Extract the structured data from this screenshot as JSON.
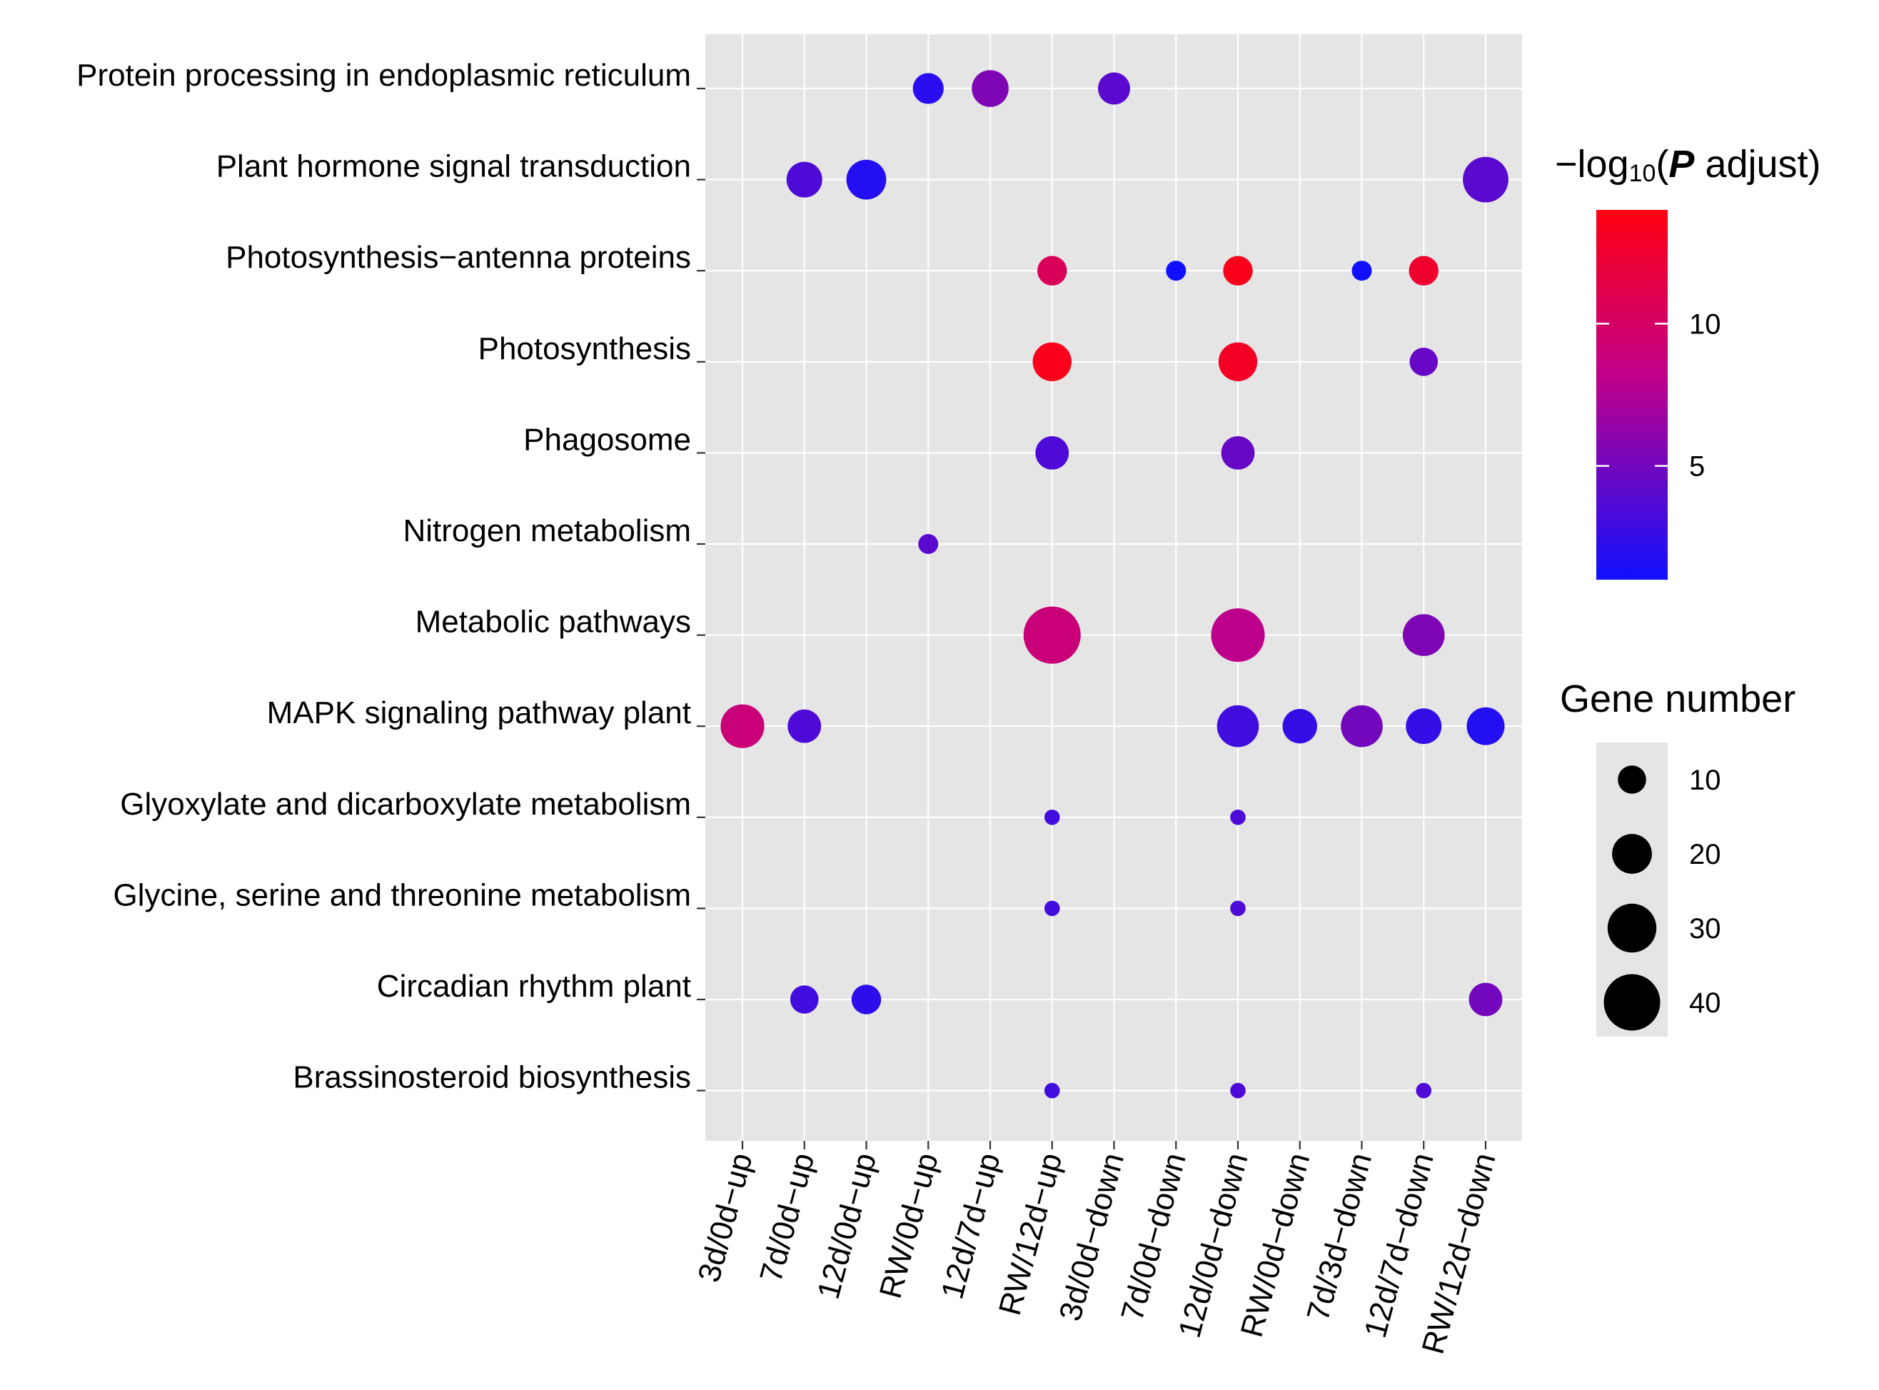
{
  "chart_data": {
    "type": "dot",
    "title": "",
    "xlabel": "",
    "ylabel": "",
    "categories_x": [
      "3d/0d-up",
      "7d/0d-up",
      "12d/0d-up",
      "RW/0d-up",
      "12d/7d-up",
      "RW/12d-up",
      "3d/0d-down",
      "7d/0d-down",
      "12d/0d-down",
      "RW/0d-down",
      "7d/3d-down",
      "12d/7d-down",
      "RW/12d-down"
    ],
    "categories_y": [
      "Protein processing in endoplasmic reticulum",
      "Plant hormone signal transduction",
      "Photosynthesis-antenna proteins",
      "Photosynthesis",
      "Phagosome",
      "Nitrogen metabolism",
      "Metabolic pathways",
      "MAPK signaling pathway plant",
      "Glyoxylate and dicarboxylate metabolism",
      "Glycine, serine and threonine metabolism",
      "Circadian rhythm plant",
      "Brassinosteroid biosynthesis"
    ],
    "points": [
      {
        "pathway": "Protein processing in endoplasmic reticulum",
        "comparison": "RW/0d-up",
        "gene_number": 12,
        "neg_log10_padj": 2.0
      },
      {
        "pathway": "Protein processing in endoplasmic reticulum",
        "comparison": "12d/7d-up",
        "gene_number": 17,
        "neg_log10_padj": 5.5
      },
      {
        "pathway": "Protein processing in endoplasmic reticulum",
        "comparison": "3d/0d-down",
        "gene_number": 13,
        "neg_log10_padj": 4.0
      },
      {
        "pathway": "Plant hormone signal transduction",
        "comparison": "7d/0d-up",
        "gene_number": 16,
        "neg_log10_padj": 3.5
      },
      {
        "pathway": "Plant hormone signal transduction",
        "comparison": "12d/0d-up",
        "gene_number": 20,
        "neg_log10_padj": 1.8
      },
      {
        "pathway": "Plant hormone signal transduction",
        "comparison": "RW/12d-down",
        "gene_number": 26,
        "neg_log10_padj": 4.0
      },
      {
        "pathway": "Photosynthesis-antenna proteins",
        "comparison": "RW/12d-up",
        "gene_number": 11,
        "neg_log10_padj": 10.5
      },
      {
        "pathway": "Photosynthesis-antenna proteins",
        "comparison": "7d/0d-down",
        "gene_number": 5,
        "neg_log10_padj": 1.0
      },
      {
        "pathway": "Photosynthesis-antenna proteins",
        "comparison": "12d/0d-down",
        "gene_number": 11,
        "neg_log10_padj": 13.5
      },
      {
        "pathway": "Photosynthesis-antenna proteins",
        "comparison": "7d/3d-down",
        "gene_number": 5,
        "neg_log10_padj": 1.0
      },
      {
        "pathway": "Photosynthesis-antenna proteins",
        "comparison": "12d/7d-down",
        "gene_number": 11,
        "neg_log10_padj": 12.5
      },
      {
        "pathway": "Photosynthesis",
        "comparison": "RW/12d-up",
        "gene_number": 19,
        "neg_log10_padj": 13.5
      },
      {
        "pathway": "Photosynthesis",
        "comparison": "12d/0d-down",
        "gene_number": 19,
        "neg_log10_padj": 13.0
      },
      {
        "pathway": "Photosynthesis",
        "comparison": "12d/7d-down",
        "gene_number": 10,
        "neg_log10_padj": 4.5
      },
      {
        "pathway": "Phagosome",
        "comparison": "RW/12d-up",
        "gene_number": 14,
        "neg_log10_padj": 3.5
      },
      {
        "pathway": "Phagosome",
        "comparison": "12d/0d-down",
        "gene_number": 14,
        "neg_log10_padj": 4.5
      },
      {
        "pathway": "Nitrogen metabolism",
        "comparison": "RW/0d-up",
        "gene_number": 5,
        "neg_log10_padj": 4.0
      },
      {
        "pathway": "Metabolic pathways",
        "comparison": "RW/12d-up",
        "gene_number": 41,
        "neg_log10_padj": 9.0
      },
      {
        "pathway": "Metabolic pathways",
        "comparison": "12d/0d-down",
        "gene_number": 36,
        "neg_log10_padj": 8.0
      },
      {
        "pathway": "Metabolic pathways",
        "comparison": "12d/7d-down",
        "gene_number": 22,
        "neg_log10_padj": 5.5
      },
      {
        "pathway": "MAPK signaling pathway plant",
        "comparison": "3d/0d-up",
        "gene_number": 24,
        "neg_log10_padj": 9.0
      },
      {
        "pathway": "MAPK signaling pathway plant",
        "comparison": "7d/0d-up",
        "gene_number": 14,
        "neg_log10_padj": 3.5
      },
      {
        "pathway": "MAPK signaling pathway plant",
        "comparison": "12d/0d-down",
        "gene_number": 22,
        "neg_log10_padj": 3.0
      },
      {
        "pathway": "MAPK signaling pathway plant",
        "comparison": "RW/0d-down",
        "gene_number": 15,
        "neg_log10_padj": 2.5
      },
      {
        "pathway": "MAPK signaling pathway plant",
        "comparison": "7d/3d-down",
        "gene_number": 22,
        "neg_log10_padj": 5.0
      },
      {
        "pathway": "MAPK signaling pathway plant",
        "comparison": "12d/7d-down",
        "gene_number": 16,
        "neg_log10_padj": 2.5
      },
      {
        "pathway": "MAPK signaling pathway plant",
        "comparison": "RW/12d-down",
        "gene_number": 18,
        "neg_log10_padj": 1.8
      },
      {
        "pathway": "Glyoxylate and dicarboxylate metabolism",
        "comparison": "RW/12d-up",
        "gene_number": 3,
        "neg_log10_padj": 3.0
      },
      {
        "pathway": "Glyoxylate and dicarboxylate metabolism",
        "comparison": "12d/0d-down",
        "gene_number": 3,
        "neg_log10_padj": 3.5
      },
      {
        "pathway": "Glycine, serine and threonine metabolism",
        "comparison": "RW/12d-up",
        "gene_number": 3,
        "neg_log10_padj": 3.0
      },
      {
        "pathway": "Glycine, serine and threonine metabolism",
        "comparison": "12d/0d-down",
        "gene_number": 3,
        "neg_log10_padj": 3.5
      },
      {
        "pathway": "Circadian rhythm plant",
        "comparison": "7d/0d-up",
        "gene_number": 10,
        "neg_log10_padj": 3.0
      },
      {
        "pathway": "Circadian rhythm plant",
        "comparison": "12d/0d-up",
        "gene_number": 11,
        "neg_log10_padj": 2.2
      },
      {
        "pathway": "Circadian rhythm plant",
        "comparison": "RW/12d-down",
        "gene_number": 14,
        "neg_log10_padj": 5.0
      },
      {
        "pathway": "Brassinosteroid biosynthesis",
        "comparison": "RW/12d-up",
        "gene_number": 3,
        "neg_log10_padj": 3.0
      },
      {
        "pathway": "Brassinosteroid biosynthesis",
        "comparison": "12d/0d-down",
        "gene_number": 3,
        "neg_log10_padj": 3.5
      },
      {
        "pathway": "Brassinosteroid biosynthesis",
        "comparison": "12d/7d-down",
        "gene_number": 3,
        "neg_log10_padj": 3.5
      }
    ],
    "color_scale": {
      "label": "-log10(P adjust)",
      "label_parts": {
        "minus": "−log",
        "sub": "10",
        "open": "(",
        "p": "P",
        "rest": " adjust)"
      },
      "min": 1,
      "max": 14,
      "low_color": "#1010ff",
      "mid_color": "#c0008a",
      "high_color": "#ff0010",
      "ticks": [
        5,
        10
      ]
    },
    "size_legend": {
      "title": "Gene number",
      "values": [
        10,
        20,
        30,
        40
      ],
      "max": 41
    },
    "panel_background": "#e5e5e5",
    "grid_color": "#ffffff"
  }
}
